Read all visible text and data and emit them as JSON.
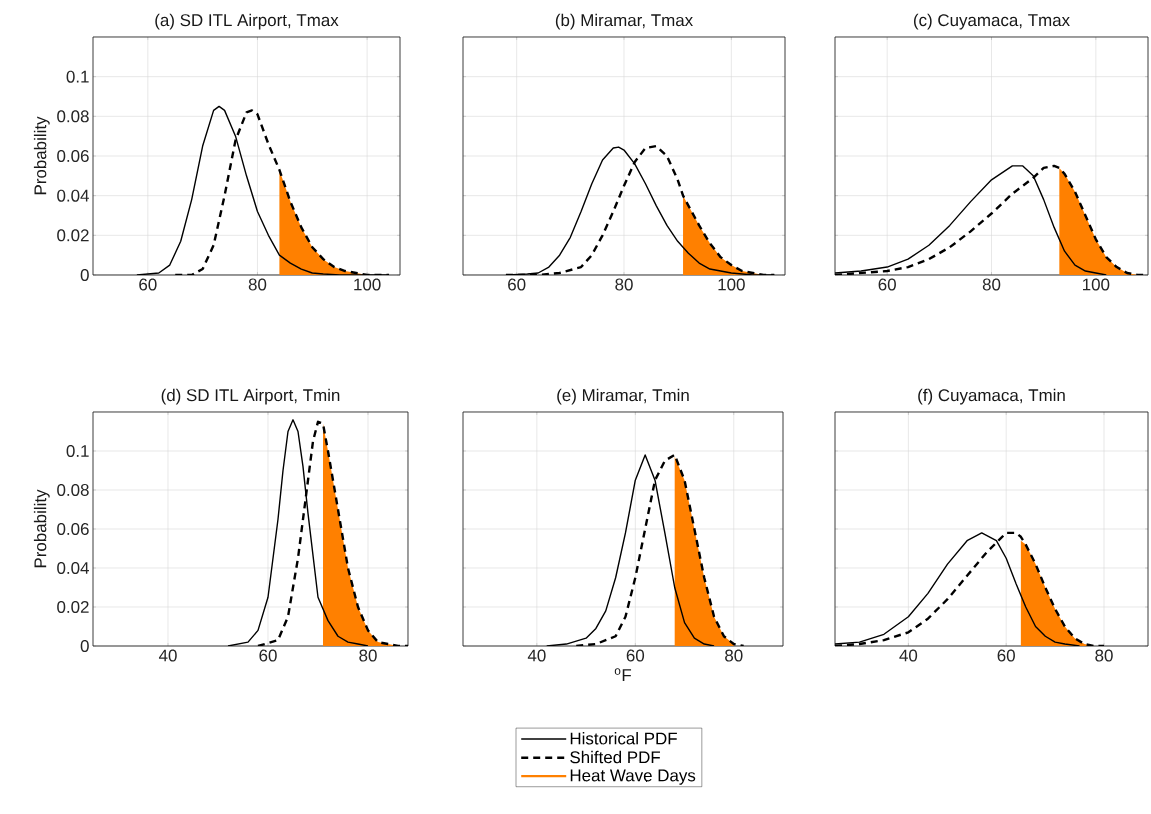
{
  "chart_data": [
    {
      "type": "line",
      "title": "(a) SD ITL Airport, Tmax",
      "ylabel": "Probability",
      "xlim": [
        50,
        106
      ],
      "ylim": [
        0,
        0.12
      ],
      "xticks": [
        60,
        80,
        100
      ],
      "yticks": [
        0,
        0.02,
        0.04,
        0.06,
        0.08,
        0.1
      ],
      "grid": true,
      "series": [
        {
          "type": "line",
          "color": "#000000",
          "line_style": "solid",
          "x": [
            58,
            60,
            62,
            64,
            66,
            68,
            70,
            72,
            73,
            74,
            76,
            78,
            80,
            82,
            84,
            86,
            88,
            90,
            92,
            95,
            100,
            104
          ],
          "values": [
            0,
            0.0005,
            0.001,
            0.005,
            0.017,
            0.038,
            0.065,
            0.083,
            0.085,
            0.083,
            0.07,
            0.05,
            0.032,
            0.02,
            0.01,
            0.006,
            0.003,
            0.001,
            0.0005,
            0,
            0,
            0
          ]
        },
        {
          "type": "line",
          "color": "#000000",
          "line_style": "dashed",
          "x": [
            65,
            68,
            70,
            72,
            74,
            76,
            78,
            79,
            80,
            82,
            84,
            86,
            88,
            90,
            92,
            94,
            96,
            98,
            100,
            104
          ],
          "values": [
            0,
            0,
            0.003,
            0.015,
            0.04,
            0.068,
            0.082,
            0.083,
            0.081,
            0.066,
            0.053,
            0.037,
            0.024,
            0.014,
            0.008,
            0.004,
            0.002,
            0.001,
            0,
            0
          ]
        },
        {
          "type": "area",
          "color": "#ff8000",
          "x": [
            84,
            86,
            88,
            90,
            92,
            94,
            96,
            98,
            100,
            104
          ],
          "values": [
            0.053,
            0.037,
            0.024,
            0.014,
            0.008,
            0.004,
            0.002,
            0.001,
            0,
            0
          ]
        }
      ]
    },
    {
      "type": "line",
      "title": "(b) Miramar, Tmax",
      "xlim": [
        50,
        110
      ],
      "ylim": [
        0,
        0.12
      ],
      "xticks": [
        60,
        80,
        100
      ],
      "yticks": [
        0,
        0.02,
        0.04,
        0.06,
        0.08,
        0.1
      ],
      "grid": true,
      "tick_labels": "x",
      "series": [
        {
          "type": "line",
          "color": "#000000",
          "line_style": "solid",
          "x": [
            58,
            62,
            64,
            66,
            68,
            70,
            72,
            74,
            76,
            78,
            79,
            80,
            82,
            84,
            86,
            88,
            90,
            92,
            94,
            96,
            98,
            100,
            104,
            108
          ],
          "values": [
            0,
            0.0005,
            0.001,
            0.004,
            0.01,
            0.019,
            0.032,
            0.046,
            0.058,
            0.064,
            0.0645,
            0.063,
            0.056,
            0.046,
            0.035,
            0.025,
            0.017,
            0.011,
            0.006,
            0.003,
            0.002,
            0.001,
            0,
            0
          ]
        },
        {
          "type": "line",
          "color": "#000000",
          "line_style": "dashed",
          "x": [
            58,
            64,
            68,
            72,
            74,
            76,
            78,
            80,
            82,
            84,
            86,
            88,
            90,
            91,
            92,
            94,
            96,
            98,
            100,
            102,
            104,
            106,
            108
          ],
          "values": [
            0,
            0,
            0.001,
            0.004,
            0.01,
            0.02,
            0.032,
            0.045,
            0.057,
            0.064,
            0.065,
            0.06,
            0.048,
            0.04,
            0.035,
            0.025,
            0.016,
            0.009,
            0.005,
            0.002,
            0.001,
            0,
            0
          ]
        },
        {
          "type": "area",
          "color": "#ff8000",
          "x": [
            91,
            92,
            94,
            96,
            98,
            100,
            102,
            104,
            106,
            108
          ],
          "values": [
            0.04,
            0.035,
            0.025,
            0.016,
            0.009,
            0.005,
            0.002,
            0.001,
            0,
            0
          ]
        }
      ]
    },
    {
      "type": "line",
      "title": "(c) Cuyamaca, Tmax",
      "xlim": [
        50,
        110
      ],
      "ylim": [
        0,
        0.12
      ],
      "xticks": [
        60,
        80,
        100
      ],
      "yticks": [
        0,
        0.02,
        0.04,
        0.06,
        0.08,
        0.1
      ],
      "grid": true,
      "tick_labels": "x",
      "series": [
        {
          "type": "line",
          "color": "#000000",
          "line_style": "solid",
          "x": [
            50,
            55,
            60,
            64,
            68,
            72,
            76,
            80,
            84,
            86,
            88,
            90,
            92,
            94,
            96,
            98,
            100,
            102
          ],
          "values": [
            0.001,
            0.002,
            0.004,
            0.008,
            0.015,
            0.025,
            0.037,
            0.048,
            0.055,
            0.055,
            0.05,
            0.038,
            0.024,
            0.012,
            0.005,
            0.002,
            0.001,
            0
          ]
        },
        {
          "type": "line",
          "color": "#000000",
          "line_style": "dashed",
          "x": [
            50,
            60,
            64,
            68,
            72,
            76,
            80,
            84,
            88,
            90,
            92,
            93,
            94,
            96,
            98,
            100,
            102,
            104,
            106,
            108,
            110
          ],
          "values": [
            0,
            0.002,
            0.004,
            0.008,
            0.014,
            0.022,
            0.031,
            0.041,
            0.049,
            0.054,
            0.055,
            0.054,
            0.051,
            0.042,
            0.03,
            0.018,
            0.009,
            0.004,
            0.001,
            0,
            0
          ]
        },
        {
          "type": "area",
          "color": "#ff8000",
          "x": [
            93,
            94,
            96,
            98,
            100,
            102,
            104,
            106,
            108,
            110
          ],
          "values": [
            0.054,
            0.051,
            0.042,
            0.03,
            0.018,
            0.009,
            0.004,
            0.001,
            0,
            0
          ]
        }
      ]
    },
    {
      "type": "line",
      "title": "(d) SD ITL Airport, Tmin",
      "ylabel": "Probability",
      "xlim": [
        25,
        88
      ],
      "ylim": [
        0,
        0.12
      ],
      "xticks": [
        40,
        60,
        80
      ],
      "yticks": [
        0,
        0.02,
        0.04,
        0.06,
        0.08,
        0.1
      ],
      "grid": true,
      "series": [
        {
          "type": "line",
          "color": "#000000",
          "line_style": "solid",
          "x": [
            52,
            56,
            58,
            60,
            62,
            63,
            64,
            65,
            66,
            67,
            68,
            70,
            72,
            74,
            76,
            78,
            80
          ],
          "values": [
            0,
            0.002,
            0.008,
            0.025,
            0.065,
            0.09,
            0.11,
            0.116,
            0.11,
            0.092,
            0.068,
            0.025,
            0.013,
            0.005,
            0.002,
            0.001,
            0
          ]
        },
        {
          "type": "line",
          "color": "#000000",
          "line_style": "dashed",
          "x": [
            58,
            62,
            64,
            66,
            68,
            69,
            70,
            71,
            72,
            74,
            76,
            78,
            80,
            82,
            84,
            86,
            88
          ],
          "values": [
            0,
            0.003,
            0.015,
            0.045,
            0.085,
            0.105,
            0.115,
            0.114,
            0.1,
            0.07,
            0.04,
            0.02,
            0.008,
            0.002,
            0.001,
            0,
            0
          ]
        },
        {
          "type": "area",
          "color": "#ff8000",
          "x": [
            71,
            72,
            74,
            76,
            78,
            80,
            82,
            84,
            86
          ],
          "values": [
            0.114,
            0.1,
            0.07,
            0.04,
            0.02,
            0.008,
            0.002,
            0.001,
            0
          ]
        }
      ]
    },
    {
      "type": "line",
      "title": "(e) Miramar, Tmin",
      "xlabel": "$^{o}$F",
      "xlim": [
        25,
        90
      ],
      "ylim": [
        0,
        0.12
      ],
      "xticks": [
        40,
        60,
        80
      ],
      "yticks": [
        0,
        0.02,
        0.04,
        0.06,
        0.08,
        0.1
      ],
      "grid": true,
      "tick_labels": "x",
      "legend": "bottom",
      "series": [
        {
          "name": "Historical PDF",
          "type": "line",
          "color": "#000000",
          "line_style": "solid",
          "x": [
            42,
            46,
            50,
            52,
            54,
            56,
            58,
            60,
            62,
            64,
            66,
            68,
            70,
            72,
            74,
            76
          ],
          "values": [
            0,
            0.001,
            0.004,
            0.009,
            0.018,
            0.035,
            0.058,
            0.085,
            0.098,
            0.085,
            0.058,
            0.03,
            0.012,
            0.004,
            0.001,
            0
          ]
        },
        {
          "name": "Shifted PDF",
          "type": "line",
          "color": "#000000",
          "line_style": "dashed",
          "x": [
            48,
            52,
            56,
            58,
            60,
            62,
            64,
            66,
            68,
            70,
            72,
            74,
            76,
            78,
            80,
            82
          ],
          "values": [
            0,
            0.001,
            0.005,
            0.015,
            0.035,
            0.06,
            0.085,
            0.095,
            0.098,
            0.085,
            0.06,
            0.035,
            0.015,
            0.005,
            0.001,
            0
          ]
        },
        {
          "name": "Heat Wave Days",
          "type": "area",
          "color": "#ff8000",
          "x": [
            68,
            70,
            72,
            74,
            76,
            78,
            80
          ],
          "values": [
            0.097,
            0.085,
            0.06,
            0.035,
            0.015,
            0.005,
            0.001
          ]
        }
      ]
    },
    {
      "type": "line",
      "title": "(f) Cuyamaca, Tmin",
      "xlim": [
        25,
        89
      ],
      "ylim": [
        0,
        0.12
      ],
      "xticks": [
        40,
        60,
        80
      ],
      "yticks": [
        0,
        0.02,
        0.04,
        0.06,
        0.08,
        0.1
      ],
      "grid": true,
      "tick_labels": "x",
      "series": [
        {
          "type": "line",
          "color": "#000000",
          "line_style": "solid",
          "x": [
            25,
            30,
            35,
            40,
            44,
            48,
            52,
            55,
            58,
            60,
            62,
            64,
            66,
            68,
            70,
            72,
            75
          ],
          "values": [
            0.001,
            0.002,
            0.006,
            0.015,
            0.027,
            0.042,
            0.054,
            0.058,
            0.054,
            0.045,
            0.032,
            0.02,
            0.01,
            0.005,
            0.002,
            0.001,
            0
          ]
        },
        {
          "type": "line",
          "color": "#000000",
          "line_style": "dashed",
          "x": [
            25,
            30,
            35,
            40,
            44,
            48,
            52,
            56,
            60,
            62,
            63,
            64,
            66,
            68,
            70,
            72,
            74,
            76,
            78,
            80
          ],
          "values": [
            0,
            0.001,
            0.003,
            0.007,
            0.014,
            0.024,
            0.036,
            0.048,
            0.058,
            0.058,
            0.056,
            0.052,
            0.042,
            0.03,
            0.019,
            0.01,
            0.004,
            0.001,
            0,
            0
          ]
        },
        {
          "type": "area",
          "color": "#ff8000",
          "x": [
            63,
            64,
            66,
            68,
            70,
            72,
            74,
            76,
            78
          ],
          "values": [
            0.054,
            0.052,
            0.042,
            0.03,
            0.019,
            0.01,
            0.004,
            0.001,
            0
          ]
        }
      ]
    }
  ]
}
